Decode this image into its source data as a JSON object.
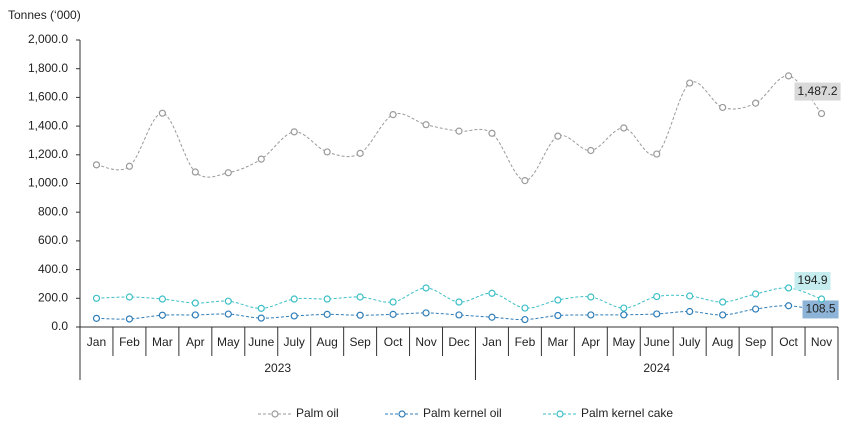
{
  "chart_data": {
    "type": "line",
    "y_label": "Tonnes (‘000)",
    "categories": [
      "Jan",
      "Feb",
      "Mar",
      "Apr",
      "May",
      "June",
      "July",
      "Aug",
      "Sep",
      "Oct",
      "Nov",
      "Dec",
      "Jan",
      "Feb",
      "Mar",
      "Apr",
      "May",
      "June",
      "July",
      "Aug",
      "Sep",
      "Oct",
      "Nov"
    ],
    "x_groups": [
      {
        "label": "2023",
        "start": 0,
        "end": 11
      },
      {
        "label": "2024",
        "start": 12,
        "end": 22
      }
    ],
    "ylim": [
      0,
      2000
    ],
    "yticks": [
      {
        "value": 0,
        "label": "0.0"
      },
      {
        "value": 200,
        "label": "200.0"
      },
      {
        "value": 400,
        "label": "400.0"
      },
      {
        "value": 600,
        "label": "600.0"
      },
      {
        "value": 800,
        "label": "800.0"
      },
      {
        "value": 1000,
        "label": "1,000.0"
      },
      {
        "value": 1200,
        "label": "1,200.0"
      },
      {
        "value": 1400,
        "label": "1,400.0"
      },
      {
        "value": 1600,
        "label": "1,600.0"
      },
      {
        "value": 1800,
        "label": "1,800.0"
      },
      {
        "value": 2000,
        "label": "2,000.0"
      }
    ],
    "grid": false,
    "smooth": true,
    "legend": "bottom",
    "series": [
      {
        "name": "Palm oil",
        "color": "#9a9a9a",
        "label_bg": "#d9d9d9",
        "values": [
          1130,
          1120,
          1490,
          1080,
          1075,
          1170,
          1360,
          1220,
          1210,
          1480,
          1410,
          1365,
          1350,
          1020,
          1330,
          1230,
          1387,
          1205,
          1700,
          1530,
          1560,
          1750,
          1487.2
        ],
        "value_labels": [
          null,
          null,
          null,
          null,
          null,
          null,
          null,
          null,
          null,
          null,
          null,
          null,
          null,
          null,
          null,
          null,
          null,
          null,
          null,
          null,
          null,
          null,
          "1,487.2"
        ]
      },
      {
        "name": "Palm kernel oil",
        "color": "#2f7db8",
        "label_bg": "#8db4d6",
        "values": [
          60,
          56,
          82,
          84,
          90,
          62,
          77,
          88,
          82,
          88,
          98,
          84,
          68,
          52,
          80,
          84,
          85,
          91,
          108,
          84,
          125,
          148,
          108.5
        ],
        "value_labels": [
          null,
          null,
          null,
          null,
          null,
          null,
          null,
          null,
          null,
          null,
          null,
          null,
          null,
          null,
          null,
          null,
          null,
          null,
          null,
          null,
          null,
          null,
          "108.5"
        ]
      },
      {
        "name": "Palm kernel cake",
        "color": "#3cbfc6",
        "label_bg": "#c5ecee",
        "values": [
          200,
          209,
          195,
          167,
          180,
          130,
          195,
          195,
          209,
          174,
          272,
          174,
          235,
          132,
          188,
          209,
          132,
          212,
          216,
          174,
          230,
          272,
          194.9
        ],
        "value_labels": [
          null,
          null,
          null,
          null,
          null,
          null,
          null,
          null,
          null,
          null,
          null,
          null,
          null,
          null,
          null,
          null,
          null,
          null,
          null,
          null,
          null,
          null,
          "194.9"
        ]
      }
    ]
  }
}
